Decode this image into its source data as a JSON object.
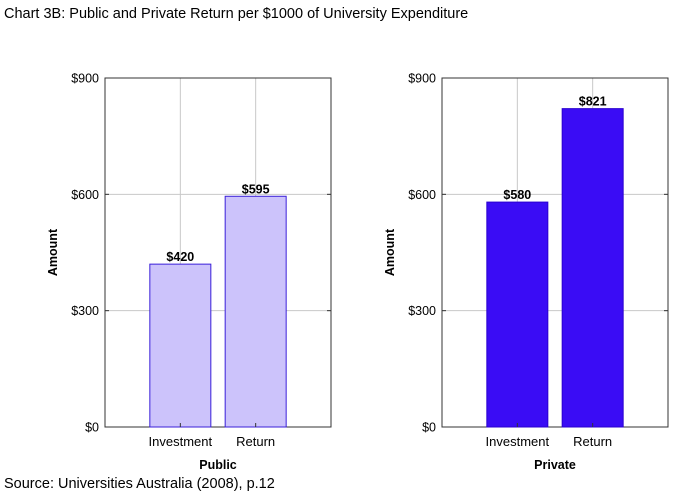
{
  "title": "Chart 3B: Public and Private Return per $1000 of University Expenditure",
  "source": "Source: Universities Australia (2008), p.12",
  "chart_data": [
    {
      "type": "bar",
      "categories": [
        "Investment",
        "Return"
      ],
      "values": [
        420,
        595
      ],
      "data_labels": [
        "$420",
        "$595"
      ],
      "xlabel": "Public",
      "ylabel": "Amount",
      "ylim": [
        0,
        900
      ],
      "yticks": [
        0,
        300,
        600,
        900
      ],
      "ytick_labels": [
        "$0",
        "$300",
        "$600",
        "$900"
      ],
      "grid": true,
      "colors": {
        "fill": "#ccc3fb",
        "stroke": "#3a1fd9"
      }
    },
    {
      "type": "bar",
      "categories": [
        "Investment",
        "Return"
      ],
      "values": [
        580,
        821
      ],
      "data_labels": [
        "$580",
        "$821"
      ],
      "xlabel": "Private",
      "ylabel": "Amount",
      "ylim": [
        0,
        900
      ],
      "yticks": [
        0,
        300,
        600,
        900
      ],
      "ytick_labels": [
        "$0",
        "$300",
        "$600",
        "$900"
      ],
      "grid": true,
      "colors": {
        "fill": "#3a0cf5",
        "stroke": "#2a00d0"
      }
    }
  ]
}
